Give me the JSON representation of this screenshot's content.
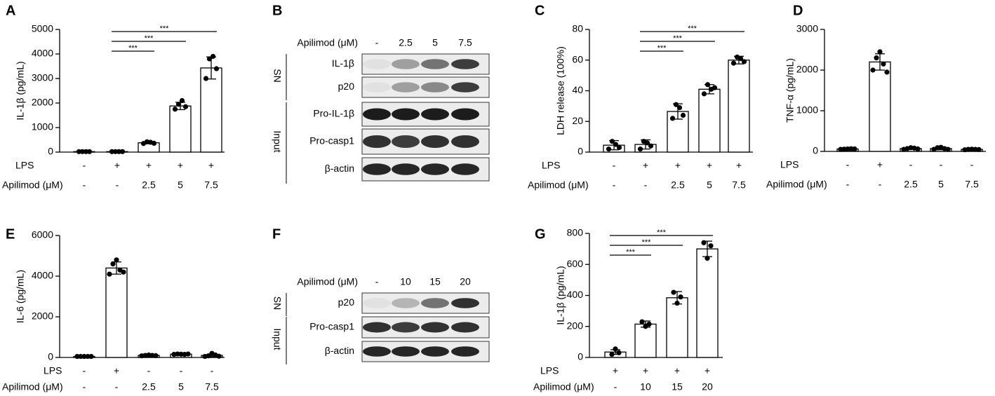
{
  "chart_data": [
    {
      "type": "bar",
      "panel": "A",
      "ylabel": "IL-1β (pg/mL)",
      "ylim": [
        0,
        5000
      ],
      "yticks": [
        0,
        1000,
        2000,
        3000,
        4000,
        5000
      ],
      "conditions": [
        {
          "label": "LPS",
          "values": [
            "-",
            "+",
            "+",
            "+",
            "+"
          ]
        },
        {
          "label": "Apilimod (μM)",
          "values": [
            "-",
            "-",
            "2.5",
            "5",
            "7.5"
          ]
        }
      ],
      "values": [
        20,
        20,
        380,
        1880,
        3430
      ],
      "errors": [
        5,
        5,
        40,
        150,
        450
      ],
      "points": [
        [
          20,
          20,
          20,
          20
        ],
        [
          20,
          20,
          20,
          20
        ],
        [
          350,
          420,
          400,
          360
        ],
        [
          1750,
          1950,
          2100,
          1850
        ],
        [
          3000,
          3800,
          3900,
          3400
        ]
      ],
      "brackets": [
        {
          "label": "***",
          "groups": [
            1,
            4
          ]
        },
        {
          "label": "***",
          "groups": [
            1,
            3
          ]
        },
        {
          "label": "***",
          "groups": [
            1,
            2
          ]
        }
      ]
    },
    {
      "type": "bar",
      "panel": "C",
      "ylabel": "LDH release (100%)",
      "ylim": [
        0,
        80
      ],
      "yticks": [
        0,
        20,
        40,
        60,
        80
      ],
      "conditions": [
        {
          "label": "LPS",
          "values": [
            "-",
            "+",
            "+",
            "+",
            "+"
          ]
        },
        {
          "label": "Apilimod (μM)",
          "values": [
            "-",
            "-",
            "2.5",
            "5",
            "7.5"
          ]
        }
      ],
      "values": [
        4.5,
        5,
        26.5,
        41,
        60
      ],
      "errors": [
        3,
        3,
        5,
        3,
        2.5
      ],
      "points": [
        [
          2,
          7,
          5,
          3
        ],
        [
          2,
          7,
          6,
          4
        ],
        [
          22,
          31,
          29,
          24
        ],
        [
          38,
          44,
          41,
          42
        ],
        [
          58,
          62,
          61,
          59
        ]
      ],
      "brackets": [
        {
          "label": "***",
          "groups": [
            1,
            4
          ]
        },
        {
          "label": "***",
          "groups": [
            1,
            3
          ]
        },
        {
          "label": "***",
          "groups": [
            1,
            2
          ]
        }
      ]
    },
    {
      "type": "bar",
      "panel": "D",
      "ylabel": "TNF-α (pg/mL)",
      "ylim": [
        0,
        3000
      ],
      "yticks": [
        0,
        1000,
        2000,
        3000
      ],
      "conditions": [
        {
          "label": "LPS",
          "values": [
            "-",
            "+",
            "-",
            "-",
            "-"
          ]
        },
        {
          "label": "Apilimod (μM)",
          "values": [
            "-",
            "-",
            "2.5",
            "5",
            "7.5"
          ]
        }
      ],
      "values": [
        60,
        2200,
        70,
        70,
        50
      ],
      "errors": [
        15,
        200,
        20,
        30,
        10
      ],
      "points": [
        [
          50,
          55,
          60,
          65,
          60
        ],
        [
          2000,
          2300,
          2450,
          2150,
          1950
        ],
        [
          50,
          70,
          90,
          80,
          60
        ],
        [
          50,
          90,
          100,
          70,
          50
        ],
        [
          40,
          50,
          55,
          50,
          45
        ]
      ],
      "brackets": []
    },
    {
      "type": "bar",
      "panel": "E",
      "ylabel": "IL-6 (pg/mL)",
      "ylim": [
        0,
        6000
      ],
      "yticks": [
        0,
        2000,
        4000,
        6000
      ],
      "conditions": [
        {
          "label": "LPS",
          "values": [
            "-",
            "+",
            "-",
            "-",
            "-"
          ]
        },
        {
          "label": "Apilimod (μM)",
          "values": [
            "-",
            "-",
            "2.5",
            "5",
            "7.5"
          ]
        }
      ],
      "values": [
        50,
        4400,
        100,
        160,
        100
      ],
      "errors": [
        10,
        300,
        20,
        20,
        60
      ],
      "points": [
        [
          50,
          50,
          50,
          50,
          50
        ],
        [
          4100,
          4600,
          4800,
          4300,
          4200
        ],
        [
          80,
          100,
          120,
          100,
          90
        ],
        [
          150,
          170,
          160,
          150,
          170
        ],
        [
          50,
          80,
          200,
          120,
          60
        ]
      ],
      "brackets": []
    },
    {
      "type": "bar",
      "panel": "G",
      "ylabel": "IL-1β (pg/mL)",
      "ylim": [
        0,
        800
      ],
      "yticks": [
        0,
        200,
        400,
        600,
        800
      ],
      "conditions": [
        {
          "label": "LPS",
          "values": [
            "+",
            "+",
            "+",
            "+"
          ]
        },
        {
          "label": "Apilimod (μM)",
          "values": [
            "-",
            "10",
            "15",
            "20"
          ]
        }
      ],
      "values": [
        35,
        215,
        385,
        700
      ],
      "errors": [
        15,
        20,
        40,
        50
      ],
      "points": [
        [
          20,
          55,
          30
        ],
        [
          230,
          200,
          215
        ],
        [
          420,
          350,
          390
        ],
        [
          740,
          640,
          720
        ]
      ],
      "brackets": [
        {
          "label": "***",
          "groups": [
            0,
            3
          ]
        },
        {
          "label": "***",
          "groups": [
            0,
            2
          ]
        },
        {
          "label": "***",
          "groups": [
            0,
            1
          ]
        }
      ]
    }
  ],
  "blots": [
    {
      "panel": "B",
      "header": "Apilimod (μM)",
      "lanes": [
        "-",
        "2.5",
        "5",
        "7.5"
      ],
      "groups": [
        {
          "label": "SN",
          "bands": [
            "IL-1β",
            "p20"
          ]
        },
        {
          "label": "Input",
          "bands": [
            "Pro-IL-1β",
            "Pro-casp1",
            "β-actin"
          ]
        }
      ]
    },
    {
      "panel": "F",
      "header": "Apilimod (μM)",
      "lanes": [
        "-",
        "10",
        "15",
        "20"
      ],
      "groups": [
        {
          "label": "SN",
          "bands": [
            "p20"
          ]
        },
        {
          "label": "Input",
          "bands": [
            "Pro-casp1",
            "β-actin"
          ]
        }
      ]
    }
  ]
}
